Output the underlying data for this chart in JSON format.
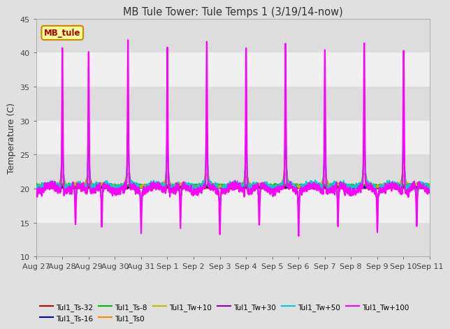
{
  "title": "MB Tule Tower: Tule Temps 1 (3/19/14-now)",
  "ylabel": "Temperature (C)",
  "legend_label": "MB_tule",
  "ylim": [
    10,
    45
  ],
  "yticks": [
    10,
    15,
    20,
    25,
    30,
    35,
    40,
    45
  ],
  "fig_bg": "#e0e0e0",
  "plot_bg": "#f5f5f5",
  "band_color": "#d8d8d8",
  "series": [
    {
      "label": "Tul1_Ts-32",
      "color": "#cc0000",
      "lw": 1.2
    },
    {
      "label": "Tul1_Ts-16",
      "color": "#0000cc",
      "lw": 1.2
    },
    {
      "label": "Tul1_Ts-8",
      "color": "#00bb00",
      "lw": 1.2
    },
    {
      "label": "Tul1_Ts0",
      "color": "#ff8800",
      "lw": 1.2
    },
    {
      "label": "Tul1_Tw+10",
      "color": "#bbbb00",
      "lw": 1.2
    },
    {
      "label": "Tul1_Tw+30",
      "color": "#8800cc",
      "lw": 1.2
    },
    {
      "label": "Tul1_Tw+50",
      "color": "#00cccc",
      "lw": 1.2
    },
    {
      "label": "Tul1_Tw+100",
      "color": "#ff00ff",
      "lw": 1.5
    }
  ],
  "x_tick_labels": [
    "Aug 27",
    "Aug 28",
    "Aug 29",
    "Aug 30",
    "Aug 31",
    "Sep 1",
    "Sep 2",
    "Sep 3",
    "Sep 4",
    "Sep 5",
    "Sep 6",
    "Sep 7",
    "Sep 8",
    "Sep 9",
    "Sep 10",
    "Sep 11"
  ],
  "n_days": 15
}
